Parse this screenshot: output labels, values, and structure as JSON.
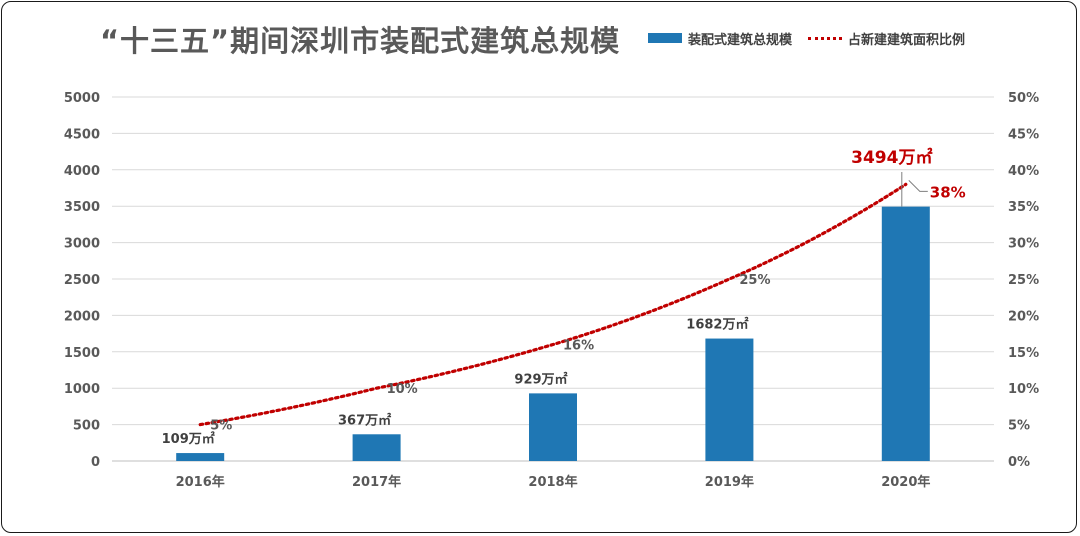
{
  "chart_data": {
    "type": "bar",
    "title": "“十三五”期间深圳市装配式建筑总规模",
    "categories": [
      "2016年",
      "2017年",
      "2018年",
      "2019年",
      "2020年"
    ],
    "series": [
      {
        "name": "装配式建筑总规模",
        "type": "bar",
        "axis": "left",
        "color": "#1f77b4",
        "values": [
          109,
          367,
          929,
          1682,
          3494
        ],
        "data_labels": [
          "109万㎡",
          "367万㎡",
          "929万㎡",
          "1682万㎡",
          "3494万㎡"
        ]
      },
      {
        "name": "占新建建筑面积比例",
        "type": "line",
        "style": "dotted",
        "axis": "right",
        "color": "#c00000",
        "values": [
          5,
          10,
          16,
          25,
          38
        ],
        "data_labels": [
          "5%",
          "10%",
          "16%",
          "25%",
          "38%"
        ]
      }
    ],
    "ylim": [
      0,
      5000
    ],
    "y_ticks": [
      "0",
      "500",
      "1000",
      "1500",
      "2000",
      "2500",
      "3000",
      "3500",
      "4000",
      "4500",
      "5000"
    ],
    "y2lim": [
      0,
      50
    ],
    "y2_ticks": [
      "0%",
      "5%",
      "10%",
      "15%",
      "20%",
      "25%",
      "30%",
      "35%",
      "40%",
      "45%",
      "50%"
    ],
    "grid": true,
    "legend_position": "top-right",
    "highlight_color": "#c00000"
  }
}
